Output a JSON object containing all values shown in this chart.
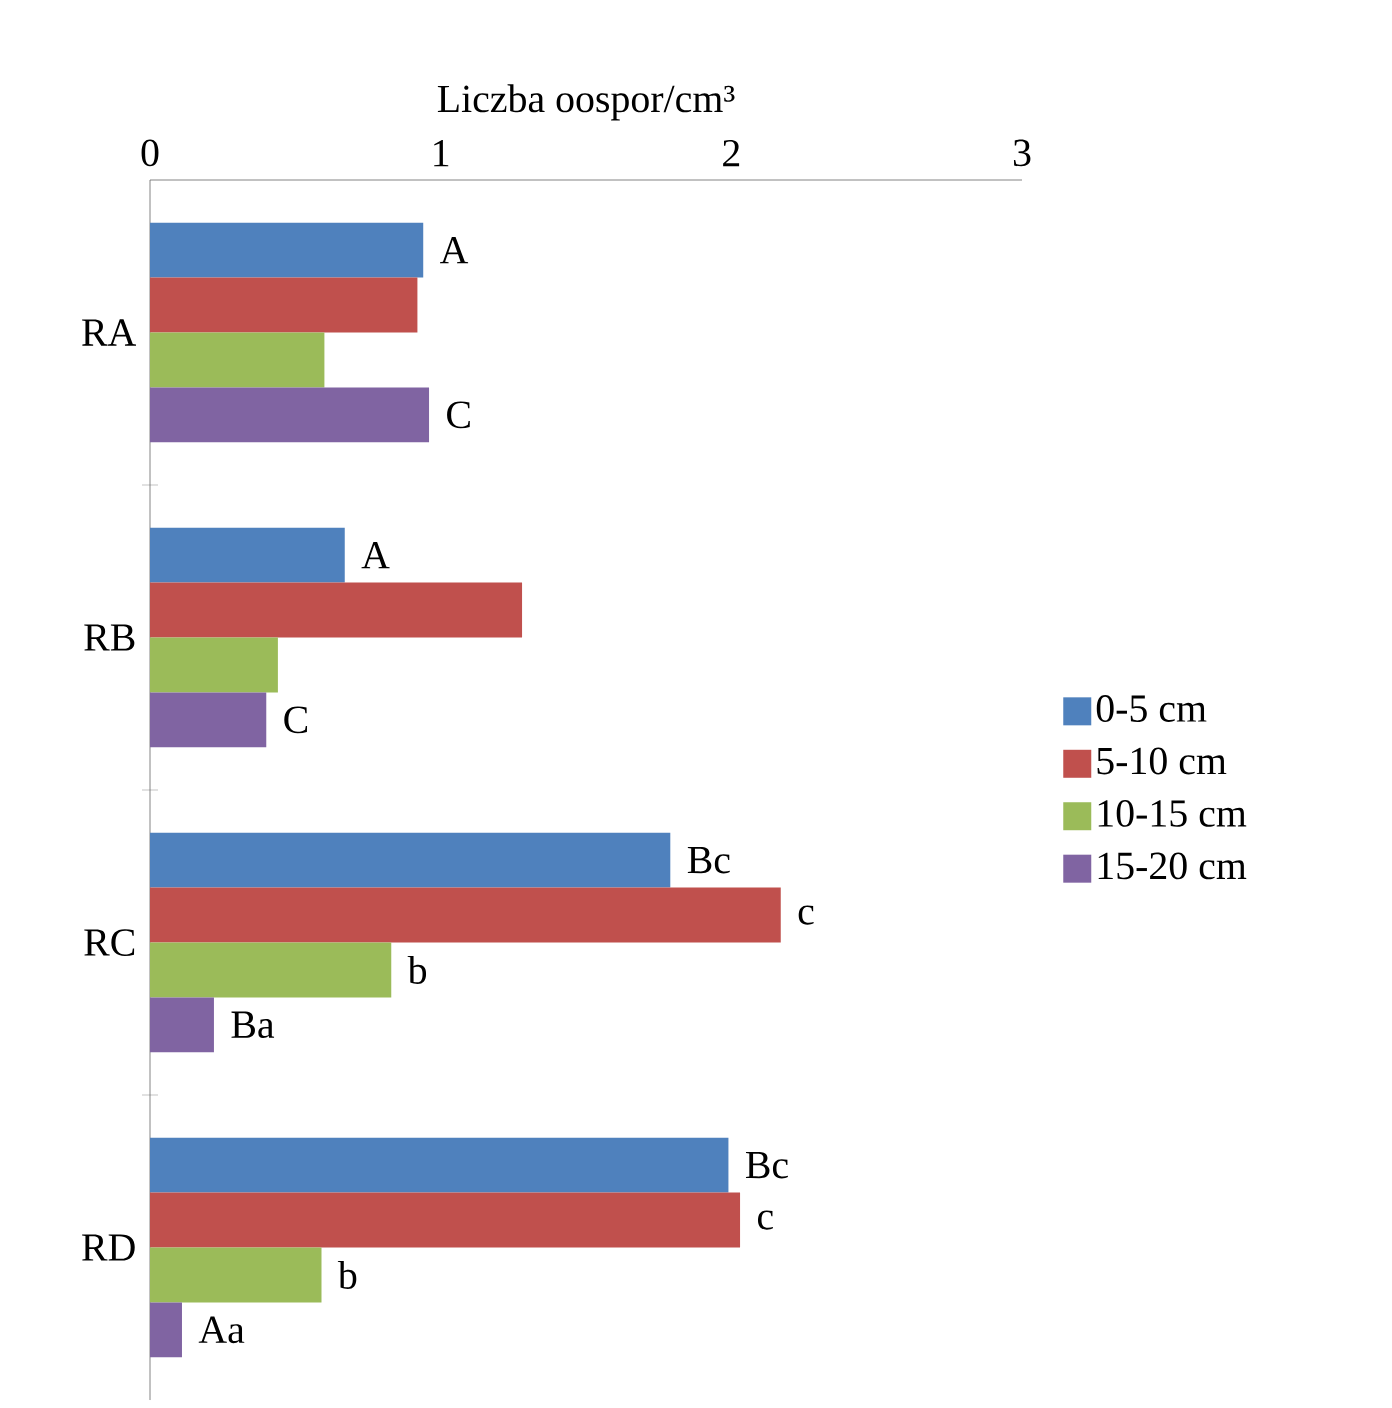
{
  "chart_data": {
    "type": "bar",
    "orientation": "horizontal",
    "xlabel": "Liczba oospor/cm³",
    "categories": [
      "RA",
      "RB",
      "RC",
      "RD"
    ],
    "xlim": [
      0,
      3
    ],
    "xticks": [
      0,
      1,
      2,
      3
    ],
    "grid": false,
    "legend": "right",
    "series": [
      {
        "name": "0-5 cm",
        "color": "#4f81bd",
        "values": [
          0.94,
          0.67,
          1.79,
          1.99
        ],
        "value_labels": [
          "A",
          "A",
          "Bc",
          "Bc"
        ]
      },
      {
        "name": "5-10 cm",
        "color": "#c0504d",
        "values": [
          0.92,
          1.28,
          2.17,
          2.03
        ],
        "value_labels": [
          null,
          null,
          "c",
          "c"
        ]
      },
      {
        "name": "10-15 cm",
        "color": "#9bbb59",
        "values": [
          0.6,
          0.44,
          0.83,
          0.59
        ],
        "value_labels": [
          null,
          null,
          "b",
          "b"
        ]
      },
      {
        "name": "15-20 cm",
        "color": "#8064a2",
        "values": [
          0.96,
          0.4,
          0.22,
          0.11
        ],
        "value_labels": [
          "C",
          "C",
          "Ba",
          "Aa"
        ]
      }
    ]
  }
}
